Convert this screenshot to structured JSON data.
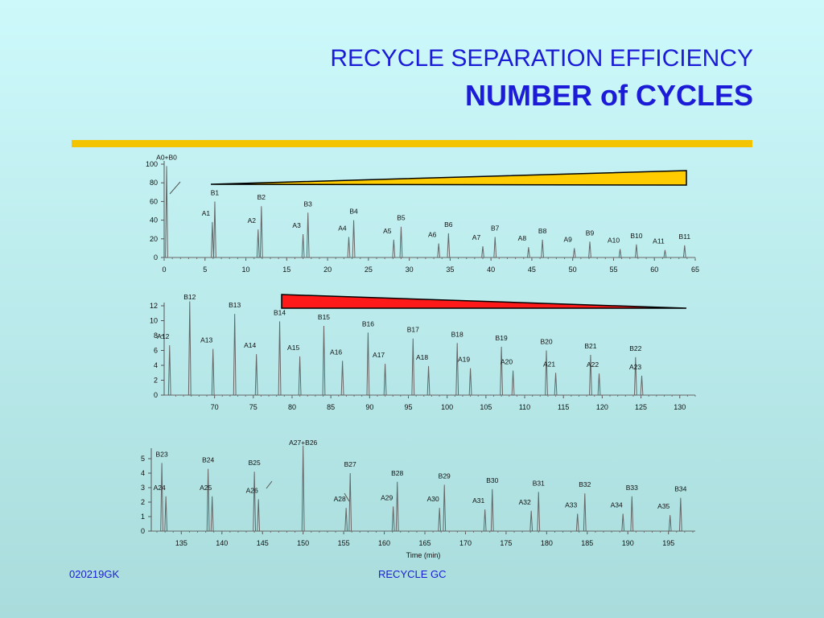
{
  "title": {
    "line1": "RECYCLE SEPARATION EFFICIENCY",
    "line2": "NUMBER of CYCLES"
  },
  "footer": {
    "left": "020219GK",
    "center": "RECYCLE GC"
  },
  "colors": {
    "title": "#1b1bd8",
    "rule": "#f5c400",
    "wedge1": "#ffcc00",
    "wedge2": "#ff1a1a",
    "trace": "#666666"
  },
  "chart_data": [
    {
      "type": "line",
      "xlabel": "",
      "xlim": [
        0,
        65
      ],
      "ylim": [
        0,
        100
      ],
      "xticks": [
        0,
        5,
        10,
        15,
        20,
        25,
        30,
        35,
        40,
        45,
        50,
        55,
        60,
        65
      ],
      "yticks": [
        0,
        20,
        40,
        60,
        80,
        100
      ],
      "peaks": [
        {
          "label": "A0+B0",
          "x": 0.3,
          "y": 98
        },
        {
          "label": "A1",
          "x": 5.9,
          "y": 38
        },
        {
          "label": "B1",
          "x": 6.2,
          "y": 60
        },
        {
          "label": "A2",
          "x": 11.5,
          "y": 30
        },
        {
          "label": "B2",
          "x": 11.9,
          "y": 55
        },
        {
          "label": "A3",
          "x": 17.0,
          "y": 25
        },
        {
          "label": "B3",
          "x": 17.6,
          "y": 48
        },
        {
          "label": "A4",
          "x": 22.6,
          "y": 22
        },
        {
          "label": "B4",
          "x": 23.2,
          "y": 40
        },
        {
          "label": "A5",
          "x": 28.1,
          "y": 19
        },
        {
          "label": "B5",
          "x": 29.0,
          "y": 33
        },
        {
          "label": "A6",
          "x": 33.6,
          "y": 15
        },
        {
          "label": "B6",
          "x": 34.8,
          "y": 26
        },
        {
          "label": "A7",
          "x": 39.0,
          "y": 12
        },
        {
          "label": "B7",
          "x": 40.5,
          "y": 22
        },
        {
          "label": "A8",
          "x": 44.6,
          "y": 11
        },
        {
          "label": "B8",
          "x": 46.3,
          "y": 19
        },
        {
          "label": "A9",
          "x": 50.2,
          "y": 10
        },
        {
          "label": "B9",
          "x": 52.1,
          "y": 17
        },
        {
          "label": "A10",
          "x": 55.8,
          "y": 9
        },
        {
          "label": "B10",
          "x": 57.8,
          "y": 14
        },
        {
          "label": "A11",
          "x": 61.3,
          "y": 8
        },
        {
          "label": "B11",
          "x": 63.7,
          "y": 13
        }
      ]
    },
    {
      "type": "line",
      "xlabel": "",
      "xlim": [
        63.5,
        132
      ],
      "ylim": [
        0,
        12
      ],
      "xticks": [
        70,
        75,
        80,
        85,
        90,
        95,
        100,
        105,
        110,
        115,
        120,
        125,
        130
      ],
      "yticks": [
        0,
        2,
        4,
        6,
        8,
        10,
        12
      ],
      "peaks": [
        {
          "label": "A12",
          "x": 64.2,
          "y": 6.7
        },
        {
          "label": "B12",
          "x": 66.8,
          "y": 12.6
        },
        {
          "label": "A13",
          "x": 69.8,
          "y": 6.2
        },
        {
          "label": "B13",
          "x": 72.6,
          "y": 10.9
        },
        {
          "label": "A14",
          "x": 75.4,
          "y": 5.5
        },
        {
          "label": "B14",
          "x": 78.4,
          "y": 9.9
        },
        {
          "label": "A15",
          "x": 81.0,
          "y": 5.2
        },
        {
          "label": "B15",
          "x": 84.1,
          "y": 9.3
        },
        {
          "label": "A16",
          "x": 86.5,
          "y": 4.6
        },
        {
          "label": "B16",
          "x": 89.8,
          "y": 8.4
        },
        {
          "label": "A17",
          "x": 92.0,
          "y": 4.2
        },
        {
          "label": "B17",
          "x": 95.6,
          "y": 7.6
        },
        {
          "label": "A18",
          "x": 97.6,
          "y": 3.9
        },
        {
          "label": "B18",
          "x": 101.3,
          "y": 7.0
        },
        {
          "label": "A19",
          "x": 103.0,
          "y": 3.6
        },
        {
          "label": "B19",
          "x": 107.0,
          "y": 6.5
        },
        {
          "label": "A20",
          "x": 108.5,
          "y": 3.3
        },
        {
          "label": "B20",
          "x": 112.8,
          "y": 6.0
        },
        {
          "label": "A21",
          "x": 114.0,
          "y": 3.0
        },
        {
          "label": "B21",
          "x": 118.5,
          "y": 5.4
        },
        {
          "label": "A22",
          "x": 119.6,
          "y": 2.9
        },
        {
          "label": "B22",
          "x": 124.3,
          "y": 5.1
        },
        {
          "label": "A23",
          "x": 125.1,
          "y": 2.6
        }
      ]
    },
    {
      "type": "line",
      "xlabel": "Time (min)",
      "xlim": [
        131.3,
        198.3
      ],
      "ylim": [
        0,
        5.5
      ],
      "xticks": [
        135,
        140,
        145,
        150,
        155,
        160,
        165,
        170,
        175,
        180,
        185,
        190,
        195
      ],
      "yticks": [
        0,
        1,
        2,
        3,
        4,
        5
      ],
      "peaks": [
        {
          "label": "B23",
          "x": 132.6,
          "y": 4.7
        },
        {
          "label": "A24",
          "x": 133.1,
          "y": 2.4
        },
        {
          "label": "B24",
          "x": 138.3,
          "y": 4.3
        },
        {
          "label": "A25",
          "x": 138.8,
          "y": 2.4
        },
        {
          "label": "B25",
          "x": 144.0,
          "y": 4.1
        },
        {
          "label": "A26",
          "x": 144.5,
          "y": 2.2
        },
        {
          "label": "A27+B26",
          "x": 150.0,
          "y": 5.9
        },
        {
          "label": "B27",
          "x": 155.8,
          "y": 4.0
        },
        {
          "label": "A28",
          "x": 155.3,
          "y": 1.6
        },
        {
          "label": "A29",
          "x": 161.1,
          "y": 1.7
        },
        {
          "label": "B28",
          "x": 161.6,
          "y": 3.4
        },
        {
          "label": "A30",
          "x": 166.8,
          "y": 1.6
        },
        {
          "label": "B29",
          "x": 167.4,
          "y": 3.2
        },
        {
          "label": "A31",
          "x": 172.4,
          "y": 1.5
        },
        {
          "label": "B30",
          "x": 173.3,
          "y": 2.9
        },
        {
          "label": "A32",
          "x": 178.1,
          "y": 1.4
        },
        {
          "label": "B31",
          "x": 179.0,
          "y": 2.7
        },
        {
          "label": "A33",
          "x": 183.8,
          "y": 1.2
        },
        {
          "label": "B32",
          "x": 184.7,
          "y": 2.6
        },
        {
          "label": "A34",
          "x": 189.4,
          "y": 1.2
        },
        {
          "label": "B33",
          "x": 190.5,
          "y": 2.4
        },
        {
          "label": "A35",
          "x": 195.2,
          "y": 1.1
        },
        {
          "label": "B34",
          "x": 196.5,
          "y": 2.3
        }
      ]
    }
  ]
}
